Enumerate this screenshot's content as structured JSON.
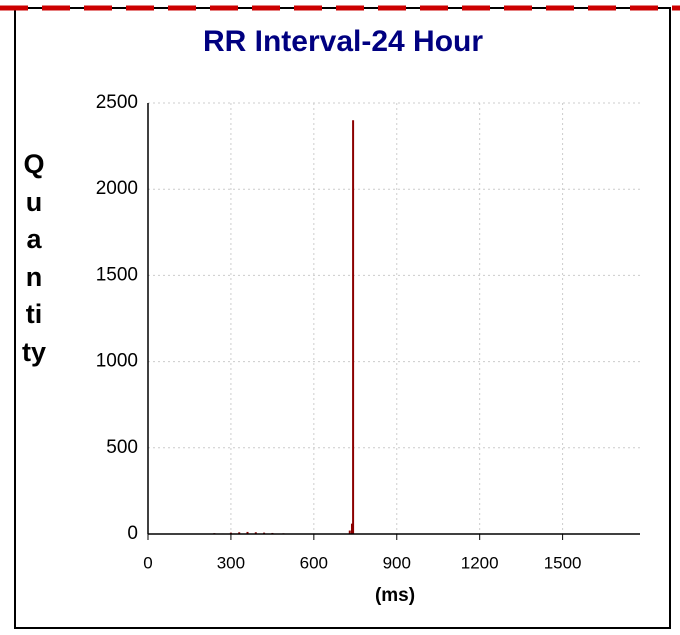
{
  "chart_data": {
    "type": "bar",
    "title": "RR Interval-24 Hour",
    "ylabel": "Quantity",
    "xlabel": "(ms)",
    "x": [
      240,
      270,
      300,
      330,
      360,
      390,
      420,
      450,
      490,
      730,
      738,
      742
    ],
    "values": [
      5,
      3,
      8,
      10,
      12,
      10,
      8,
      6,
      4,
      20,
      60,
      2400
    ],
    "color": "#8b0000",
    "xlim": [
      0,
      1780
    ],
    "xticks": [
      0,
      300,
      600,
      900,
      1200,
      1500
    ],
    "ylim": [
      0,
      2500
    ],
    "yticks": [
      0,
      500,
      1000,
      1500,
      2000,
      2500
    ],
    "grid": true
  }
}
